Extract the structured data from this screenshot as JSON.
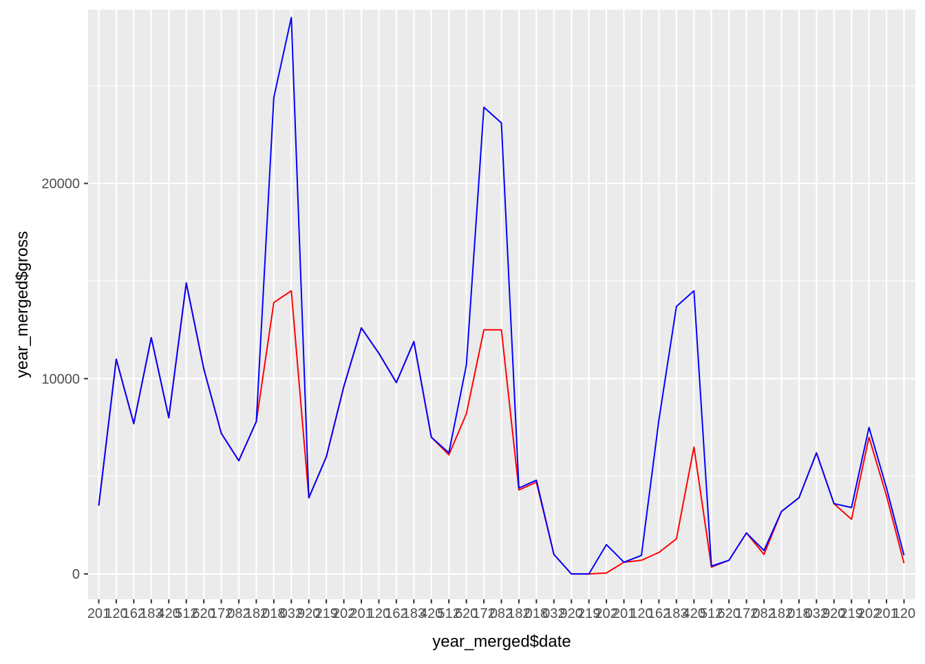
{
  "chart_data": {
    "type": "line",
    "title": "",
    "xlabel": "year_merged$date",
    "ylabel": "year_merged$gross",
    "ylim": [
      -1300,
      28900
    ],
    "yticks": [
      0,
      10000,
      20000
    ],
    "ytick_labels": [
      "0",
      "10000",
      "20000"
    ],
    "grid": true,
    "legend": "none",
    "x_tick_labels_note": "47 overlapping date tick labels along the x axis; rendered illegibly",
    "x_count": 47,
    "colors": {
      "panel_background": "#ebebeb",
      "grid": "#ffffff",
      "axis_text": "#4d4d4d",
      "tick": "#333333"
    },
    "series": [
      {
        "color": "#ff0000",
        "values": [
          3500,
          11000,
          7700,
          12100,
          8000,
          14900,
          10500,
          7200,
          5800,
          7800,
          13900,
          14500,
          3900,
          6000,
          9600,
          12600,
          11300,
          9800,
          11900,
          7000,
          6100,
          8200,
          12500,
          12500,
          4300,
          4700,
          1000,
          0,
          0,
          50,
          600,
          700,
          1100,
          1800,
          6500,
          350,
          700,
          2100,
          1000,
          3200,
          3900,
          6200,
          3600,
          2800,
          7000,
          4000,
          550
        ]
      },
      {
        "color": "#0000ff",
        "values": [
          3500,
          11000,
          7700,
          12100,
          8000,
          14900,
          10500,
          7200,
          5800,
          7800,
          24400,
          28500,
          3900,
          6000,
          9600,
          12600,
          11300,
          9800,
          11900,
          7000,
          6200,
          10700,
          23900,
          23100,
          4400,
          4800,
          1000,
          0,
          0,
          1500,
          600,
          950,
          7900,
          13700,
          14500,
          400,
          700,
          2100,
          1200,
          3200,
          3900,
          6200,
          3600,
          3400,
          7500,
          4400,
          950
        ]
      }
    ]
  }
}
